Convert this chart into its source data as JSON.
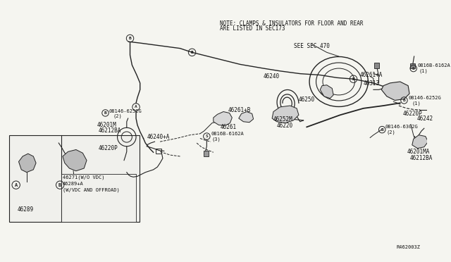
{
  "bg_color": "#f5f5f0",
  "line_color": "#222222",
  "text_color": "#111111",
  "note_text": "NOTE: CLAMPS & INSULATORS FOR FLOOR AND REAR\nARE LISTED IN SEC173",
  "see_sec": "SEE SEC.470",
  "ref_code": "R462003Z",
  "fig_w": 6.4,
  "fig_h": 3.72,
  "dpi": 100
}
